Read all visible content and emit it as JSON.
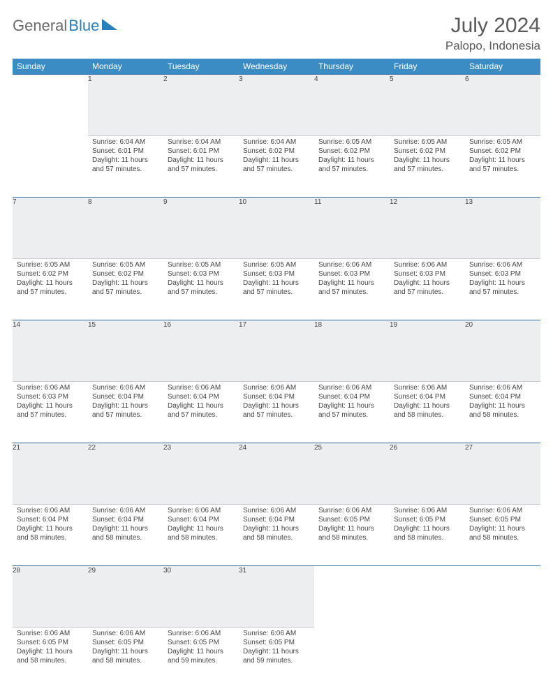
{
  "brand": {
    "part1": "General",
    "part2": "Blue"
  },
  "title": "July 2024",
  "location": "Palopo, Indonesia",
  "colors": {
    "header_bg": "#3b8cc4",
    "header_text": "#ffffff",
    "daynum_bg": "#eceef0",
    "daynum_border_top": "#2d6fa3",
    "brand_gray": "#6b6b6b",
    "brand_blue": "#2a7fba",
    "text": "#444444"
  },
  "weekdays": [
    "Sunday",
    "Monday",
    "Tuesday",
    "Wednesday",
    "Thursday",
    "Friday",
    "Saturday"
  ],
  "weeks": [
    [
      {
        "n": "",
        "sr": "",
        "ss": "",
        "dl": ""
      },
      {
        "n": "1",
        "sr": "Sunrise: 6:04 AM",
        "ss": "Sunset: 6:01 PM",
        "dl": "Daylight: 11 hours and 57 minutes."
      },
      {
        "n": "2",
        "sr": "Sunrise: 6:04 AM",
        "ss": "Sunset: 6:01 PM",
        "dl": "Daylight: 11 hours and 57 minutes."
      },
      {
        "n": "3",
        "sr": "Sunrise: 6:04 AM",
        "ss": "Sunset: 6:02 PM",
        "dl": "Daylight: 11 hours and 57 minutes."
      },
      {
        "n": "4",
        "sr": "Sunrise: 6:05 AM",
        "ss": "Sunset: 6:02 PM",
        "dl": "Daylight: 11 hours and 57 minutes."
      },
      {
        "n": "5",
        "sr": "Sunrise: 6:05 AM",
        "ss": "Sunset: 6:02 PM",
        "dl": "Daylight: 11 hours and 57 minutes."
      },
      {
        "n": "6",
        "sr": "Sunrise: 6:05 AM",
        "ss": "Sunset: 6:02 PM",
        "dl": "Daylight: 11 hours and 57 minutes."
      }
    ],
    [
      {
        "n": "7",
        "sr": "Sunrise: 6:05 AM",
        "ss": "Sunset: 6:02 PM",
        "dl": "Daylight: 11 hours and 57 minutes."
      },
      {
        "n": "8",
        "sr": "Sunrise: 6:05 AM",
        "ss": "Sunset: 6:02 PM",
        "dl": "Daylight: 11 hours and 57 minutes."
      },
      {
        "n": "9",
        "sr": "Sunrise: 6:05 AM",
        "ss": "Sunset: 6:03 PM",
        "dl": "Daylight: 11 hours and 57 minutes."
      },
      {
        "n": "10",
        "sr": "Sunrise: 6:05 AM",
        "ss": "Sunset: 6:03 PM",
        "dl": "Daylight: 11 hours and 57 minutes."
      },
      {
        "n": "11",
        "sr": "Sunrise: 6:06 AM",
        "ss": "Sunset: 6:03 PM",
        "dl": "Daylight: 11 hours and 57 minutes."
      },
      {
        "n": "12",
        "sr": "Sunrise: 6:06 AM",
        "ss": "Sunset: 6:03 PM",
        "dl": "Daylight: 11 hours and 57 minutes."
      },
      {
        "n": "13",
        "sr": "Sunrise: 6:06 AM",
        "ss": "Sunset: 6:03 PM",
        "dl": "Daylight: 11 hours and 57 minutes."
      }
    ],
    [
      {
        "n": "14",
        "sr": "Sunrise: 6:06 AM",
        "ss": "Sunset: 6:03 PM",
        "dl": "Daylight: 11 hours and 57 minutes."
      },
      {
        "n": "15",
        "sr": "Sunrise: 6:06 AM",
        "ss": "Sunset: 6:04 PM",
        "dl": "Daylight: 11 hours and 57 minutes."
      },
      {
        "n": "16",
        "sr": "Sunrise: 6:06 AM",
        "ss": "Sunset: 6:04 PM",
        "dl": "Daylight: 11 hours and 57 minutes."
      },
      {
        "n": "17",
        "sr": "Sunrise: 6:06 AM",
        "ss": "Sunset: 6:04 PM",
        "dl": "Daylight: 11 hours and 57 minutes."
      },
      {
        "n": "18",
        "sr": "Sunrise: 6:06 AM",
        "ss": "Sunset: 6:04 PM",
        "dl": "Daylight: 11 hours and 57 minutes."
      },
      {
        "n": "19",
        "sr": "Sunrise: 6:06 AM",
        "ss": "Sunset: 6:04 PM",
        "dl": "Daylight: 11 hours and 58 minutes."
      },
      {
        "n": "20",
        "sr": "Sunrise: 6:06 AM",
        "ss": "Sunset: 6:04 PM",
        "dl": "Daylight: 11 hours and 58 minutes."
      }
    ],
    [
      {
        "n": "21",
        "sr": "Sunrise: 6:06 AM",
        "ss": "Sunset: 6:04 PM",
        "dl": "Daylight: 11 hours and 58 minutes."
      },
      {
        "n": "22",
        "sr": "Sunrise: 6:06 AM",
        "ss": "Sunset: 6:04 PM",
        "dl": "Daylight: 11 hours and 58 minutes."
      },
      {
        "n": "23",
        "sr": "Sunrise: 6:06 AM",
        "ss": "Sunset: 6:04 PM",
        "dl": "Daylight: 11 hours and 58 minutes."
      },
      {
        "n": "24",
        "sr": "Sunrise: 6:06 AM",
        "ss": "Sunset: 6:04 PM",
        "dl": "Daylight: 11 hours and 58 minutes."
      },
      {
        "n": "25",
        "sr": "Sunrise: 6:06 AM",
        "ss": "Sunset: 6:05 PM",
        "dl": "Daylight: 11 hours and 58 minutes."
      },
      {
        "n": "26",
        "sr": "Sunrise: 6:06 AM",
        "ss": "Sunset: 6:05 PM",
        "dl": "Daylight: 11 hours and 58 minutes."
      },
      {
        "n": "27",
        "sr": "Sunrise: 6:06 AM",
        "ss": "Sunset: 6:05 PM",
        "dl": "Daylight: 11 hours and 58 minutes."
      }
    ],
    [
      {
        "n": "28",
        "sr": "Sunrise: 6:06 AM",
        "ss": "Sunset: 6:05 PM",
        "dl": "Daylight: 11 hours and 58 minutes."
      },
      {
        "n": "29",
        "sr": "Sunrise: 6:06 AM",
        "ss": "Sunset: 6:05 PM",
        "dl": "Daylight: 11 hours and 58 minutes."
      },
      {
        "n": "30",
        "sr": "Sunrise: 6:06 AM",
        "ss": "Sunset: 6:05 PM",
        "dl": "Daylight: 11 hours and 59 minutes."
      },
      {
        "n": "31",
        "sr": "Sunrise: 6:06 AM",
        "ss": "Sunset: 6:05 PM",
        "dl": "Daylight: 11 hours and 59 minutes."
      },
      {
        "n": "",
        "sr": "",
        "ss": "",
        "dl": ""
      },
      {
        "n": "",
        "sr": "",
        "ss": "",
        "dl": ""
      },
      {
        "n": "",
        "sr": "",
        "ss": "",
        "dl": ""
      }
    ]
  ]
}
